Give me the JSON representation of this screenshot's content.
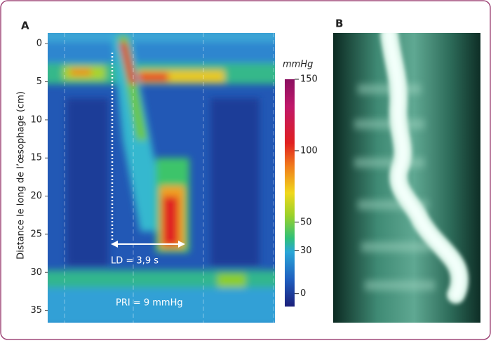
{
  "panels": [
    {
      "label": "A",
      "y_axis_label": "Distance le long de l’œsophage (cm)",
      "ylim": [
        -1.4,
        36.6
      ],
      "yticks": [
        0,
        5,
        10,
        15,
        20,
        25,
        30,
        35
      ],
      "colorbar": {
        "unit": "mmHg",
        "lim": [
          -9,
          150
        ],
        "ticks": [
          0,
          30,
          50,
          100,
          150
        ]
      },
      "annotations": [
        "LD = 3,9 s",
        "PRI = 9 mmHg"
      ]
    },
    {
      "label": "B"
    }
  ]
}
